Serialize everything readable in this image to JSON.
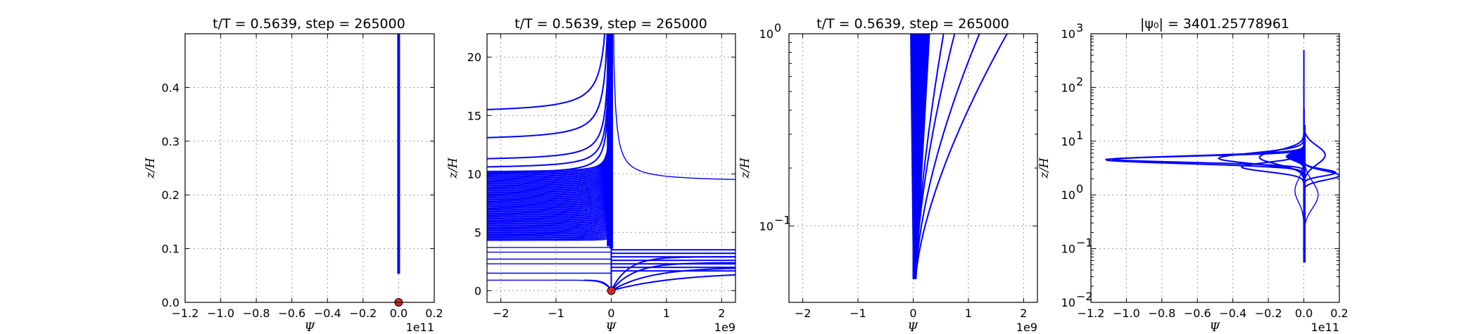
{
  "chart_data": [
    {
      "type": "line",
      "title": "t/T = 0.5639, step = 265000",
      "xlabel": "Ψ",
      "ylabel": "z/H",
      "x_scale_note": "1e11",
      "xlim": [
        -1.2,
        0.2
      ],
      "ylim": [
        0,
        0.5
      ],
      "xticks": [
        "−1.2",
        "−1.0",
        "−0.8",
        "−0.6",
        "−0.4",
        "−0.2",
        "0.0",
        "0.2"
      ],
      "yticks": [
        "0.0",
        "0.1",
        "0.2",
        "0.3",
        "0.4"
      ],
      "grid": true,
      "series": [
        {
          "values": [
            [
              0.0,
              0.053
            ],
            [
              0.0,
              0.5
            ]
          ]
        }
      ],
      "marker": {
        "x": 0.0,
        "y": 0.0,
        "color": "#d62728"
      }
    },
    {
      "type": "line",
      "title": "t/T = 0.5639, step = 265000",
      "xlabel": "Ψ",
      "ylabel": "z/H",
      "x_scale_note": "1e9",
      "xlim": [
        -2.25,
        2.25
      ],
      "ylim": [
        -1,
        22
      ],
      "xticks": [
        "−2",
        "−1",
        "0",
        "1",
        "2"
      ],
      "yticks": [
        "0",
        "5",
        "10",
        "15",
        "20"
      ],
      "grid": true,
      "marker": {
        "x": 0.0,
        "y": 0.0,
        "color": "#d62728"
      }
    },
    {
      "type": "line",
      "title": "t/T = 0.5639, step = 265000",
      "xlabel": "Ψ",
      "ylabel": "z/H",
      "x_scale_note": "1e9",
      "xlim": [
        -2.25,
        2.25
      ],
      "ylim": [
        0.04,
        1.0
      ],
      "y_scale": "log",
      "xticks": [
        "−2",
        "−1",
        "0",
        "1",
        "2"
      ],
      "grid": true
    },
    {
      "type": "line",
      "title": "|ψ₀| = 3401.25778961",
      "xlabel": "Ψ",
      "ylabel": "z/H",
      "x_scale_note": "1e11",
      "xlim": [
        -1.2,
        0.2
      ],
      "ylim": [
        0.01,
        1000
      ],
      "y_scale": "log",
      "xticks": [
        "−1.2",
        "−1.0",
        "−0.8",
        "−0.6",
        "−0.4",
        "−0.2",
        "0.0",
        "0.2"
      ],
      "grid": true
    }
  ],
  "colors": {
    "line": "#0000ff",
    "marker": "#d62728"
  }
}
